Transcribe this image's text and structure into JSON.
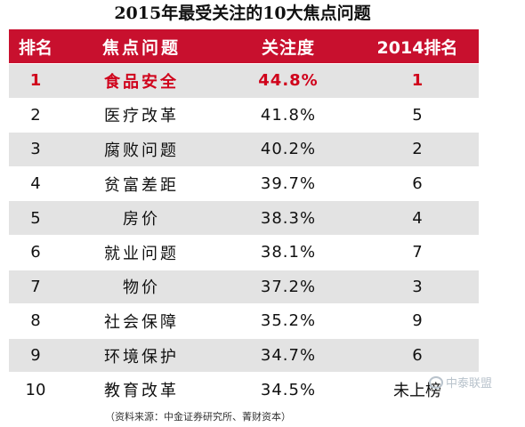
{
  "title": "2015年最受关注的10大焦点问题",
  "headers": [
    "排名",
    "焦点问题",
    "关注度",
    "2014排名"
  ],
  "rows": [
    {
      "rank": "1",
      "issue": "食品安全",
      "attention": "44.8%",
      "rank2014": "1"
    },
    {
      "rank": "2",
      "issue": "医疗改革",
      "attention": "41.8%",
      "rank2014": "5"
    },
    {
      "rank": "3",
      "issue": "腐败问题",
      "attention": "40.2%",
      "rank2014": "2"
    },
    {
      "rank": "4",
      "issue": "贫富差距",
      "attention": "39.7%",
      "rank2014": "6"
    },
    {
      "rank": "5",
      "issue": "房价",
      "attention": "38.3%",
      "rank2014": "4"
    },
    {
      "rank": "6",
      "issue": "就业问题",
      "attention": "38.1%",
      "rank2014": "7"
    },
    {
      "rank": "7",
      "issue": "物价",
      "attention": "37.2%",
      "rank2014": "3"
    },
    {
      "rank": "8",
      "issue": "社会保障",
      "attention": "35.2%",
      "rank2014": "9"
    },
    {
      "rank": "9",
      "issue": "环境保护",
      "attention": "34.7%",
      "rank2014": "6"
    },
    {
      "rank": "10",
      "issue": "教育改革",
      "attention": "34.5%",
      "rank2014": "未上榜"
    }
  ],
  "source": "（资料来源：中金证券研究所、菁财资本）",
  "watermark": "中泰联盟",
  "colors": {
    "header_bg": "#c8102e",
    "highlight_text": "#d0021b",
    "stripe": "#e3e3e3"
  }
}
